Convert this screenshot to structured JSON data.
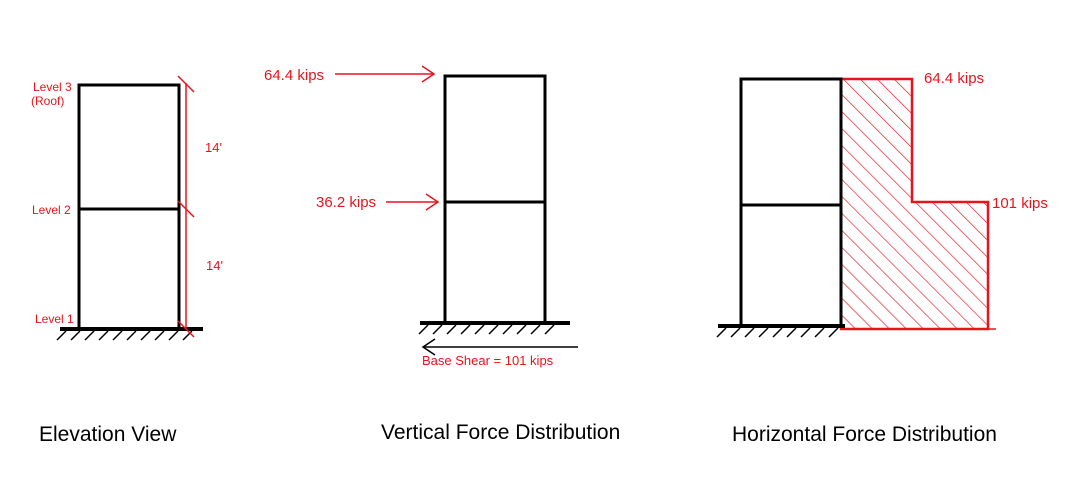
{
  "colors": {
    "frame": "#000000",
    "annotation": "#e8141c",
    "background": "#ffffff"
  },
  "elevation": {
    "caption": "Elevation View",
    "level3": "Level 3",
    "roof": "(Roof)",
    "level2": "Level 2",
    "level1": "Level 1",
    "height_upper": "14'",
    "height_lower": "14'"
  },
  "vertical": {
    "caption": "Vertical Force Distribution",
    "force_top": "64.4 kips",
    "force_mid": "36.2 kips",
    "base_shear": "Base Shear = 101 kips"
  },
  "horizontal": {
    "caption": "Horizontal Force Distribution",
    "shear_top": "64.4 kips",
    "shear_bottom": "101 kips"
  }
}
